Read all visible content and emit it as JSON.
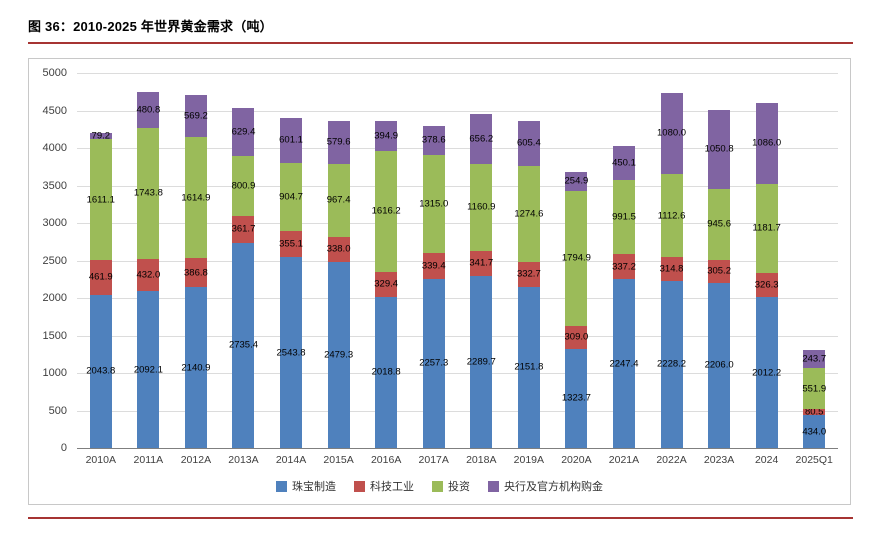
{
  "colors": {
    "accent_line": "#A63432",
    "jewelry_blue": "#4F81BD",
    "tech_red": "#C0504D",
    "investment_green": "#9BBB59",
    "central_bank_purple": "#8064A2",
    "gridline_gray": "#DCDCDC"
  },
  "chart_data": {
    "type": "bar",
    "stacked": true,
    "title": "图 36：2010-2025 年世界黄金需求（吨）",
    "xlabel": "",
    "ylabel": "",
    "ylim": [
      0,
      5000
    ],
    "ytick_step": 500,
    "grid": true,
    "legend_position": "bottom",
    "categories": [
      "2010A",
      "2011A",
      "2012A",
      "2013A",
      "2014A",
      "2015A",
      "2016A",
      "2017A",
      "2018A",
      "2019A",
      "2020A",
      "2021A",
      "2022A",
      "2023A",
      "2024",
      "2025Q1"
    ],
    "series": [
      {
        "name": "珠宝制造",
        "color": "#4F81BD",
        "values": [
          2043.8,
          2092.1,
          2140.9,
          2735.4,
          2543.8,
          2479.3,
          2018.8,
          2257.3,
          2289.7,
          2151.8,
          1323.7,
          2247.4,
          2228.2,
          2206.0,
          2012.2,
          434.0
        ]
      },
      {
        "name": "科技工业",
        "color": "#C0504D",
        "values": [
          461.9,
          432.0,
          386.8,
          361.7,
          355.1,
          338.0,
          329.4,
          339.4,
          341.7,
          332.7,
          309.0,
          337.2,
          314.8,
          305.2,
          326.3,
          80.5
        ]
      },
      {
        "name": "投资",
        "color": "#9BBB59",
        "values": [
          1611.1,
          1743.8,
          1614.9,
          800.9,
          904.7,
          967.4,
          1616.2,
          1315.0,
          1160.9,
          1274.6,
          1794.9,
          991.5,
          1112.6,
          945.6,
          1181.7,
          551.9
        ]
      },
      {
        "name": "央行及官方机构购金",
        "color": "#8064A2",
        "values": [
          79.2,
          480.8,
          569.2,
          629.4,
          601.1,
          579.6,
          394.9,
          378.6,
          656.2,
          605.4,
          254.9,
          450.1,
          1080.0,
          1050.8,
          1086.0,
          243.7
        ]
      }
    ]
  }
}
